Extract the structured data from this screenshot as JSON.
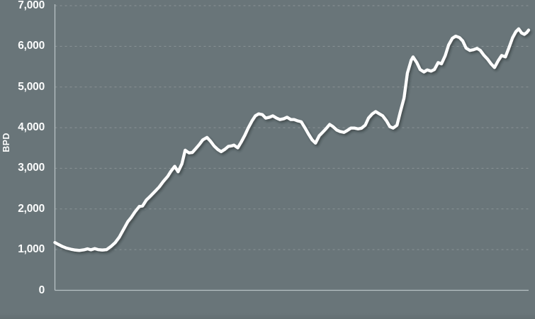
{
  "chart_data": {
    "type": "line",
    "title": "",
    "ylabel": "BPD",
    "xlabel": "",
    "ylim": [
      0,
      7000
    ],
    "x_axis_labels": "none",
    "legend": "none",
    "grid": "horizontal-dashed",
    "background_color": "#697579",
    "line_color": "#ffffff",
    "axis_color": "#b9c3c6",
    "gridline_color": "rgba(255,255,255,0.22)",
    "tick_label_color": "#fbfcfc",
    "y_ticks": [
      {
        "label": "0",
        "value": 0
      },
      {
        "label": "1,000",
        "value": 1000
      },
      {
        "label": "2,000",
        "value": 2000
      },
      {
        "label": "3,000",
        "value": 3000
      },
      {
        "label": "4,000",
        "value": 4000
      },
      {
        "label": "5,000",
        "value": 5000
      },
      {
        "label": "6,000",
        "value": 6000
      },
      {
        "label": "7,000",
        "value": 7000
      }
    ],
    "series": [
      {
        "name": "BPD",
        "x_unit": "percent-of-plot-width",
        "points": [
          [
            0.0,
            1175
          ],
          [
            0.7,
            1130
          ],
          [
            1.6,
            1075
          ],
          [
            2.5,
            1035
          ],
          [
            3.4,
            1010
          ],
          [
            4.3,
            990
          ],
          [
            5.2,
            980
          ],
          [
            6.1,
            995
          ],
          [
            6.9,
            1020
          ],
          [
            7.6,
            995
          ],
          [
            8.4,
            1025
          ],
          [
            9.1,
            1000
          ],
          [
            10.0,
            990
          ],
          [
            10.9,
            1000
          ],
          [
            11.8,
            1075
          ],
          [
            12.7,
            1170
          ],
          [
            13.6,
            1310
          ],
          [
            14.5,
            1500
          ],
          [
            15.4,
            1690
          ],
          [
            16.1,
            1790
          ],
          [
            16.9,
            1930
          ],
          [
            17.8,
            2060
          ],
          [
            18.5,
            2075
          ],
          [
            19.3,
            2220
          ],
          [
            20.2,
            2320
          ],
          [
            21.1,
            2430
          ],
          [
            22.0,
            2540
          ],
          [
            22.9,
            2680
          ],
          [
            23.8,
            2800
          ],
          [
            24.5,
            2930
          ],
          [
            25.3,
            3050
          ],
          [
            26.0,
            2915
          ],
          [
            26.8,
            3110
          ],
          [
            27.5,
            3445
          ],
          [
            28.3,
            3380
          ],
          [
            29.0,
            3390
          ],
          [
            29.7,
            3480
          ],
          [
            30.5,
            3590
          ],
          [
            31.2,
            3700
          ],
          [
            32.1,
            3760
          ],
          [
            32.9,
            3660
          ],
          [
            33.6,
            3550
          ],
          [
            34.4,
            3460
          ],
          [
            35.1,
            3410
          ],
          [
            35.9,
            3470
          ],
          [
            36.6,
            3540
          ],
          [
            37.4,
            3555
          ],
          [
            37.8,
            3570
          ],
          [
            38.6,
            3505
          ],
          [
            39.3,
            3640
          ],
          [
            40.1,
            3815
          ],
          [
            40.8,
            3990
          ],
          [
            41.6,
            4165
          ],
          [
            42.3,
            4290
          ],
          [
            43.0,
            4340
          ],
          [
            43.8,
            4320
          ],
          [
            44.5,
            4235
          ],
          [
            45.3,
            4255
          ],
          [
            46.0,
            4290
          ],
          [
            46.8,
            4235
          ],
          [
            47.5,
            4200
          ],
          [
            48.3,
            4220
          ],
          [
            49.0,
            4255
          ],
          [
            49.8,
            4200
          ],
          [
            50.5,
            4200
          ],
          [
            51.3,
            4165
          ],
          [
            52.0,
            4145
          ],
          [
            52.8,
            3990
          ],
          [
            53.5,
            3850
          ],
          [
            54.3,
            3700
          ],
          [
            55.0,
            3620
          ],
          [
            55.8,
            3800
          ],
          [
            56.5,
            3885
          ],
          [
            57.2,
            3970
          ],
          [
            58.0,
            4080
          ],
          [
            58.7,
            4025
          ],
          [
            59.5,
            3940
          ],
          [
            60.2,
            3905
          ],
          [
            61.0,
            3885
          ],
          [
            61.7,
            3930
          ],
          [
            62.5,
            3990
          ],
          [
            63.2,
            3990
          ],
          [
            64.0,
            3970
          ],
          [
            64.7,
            3985
          ],
          [
            65.5,
            4060
          ],
          [
            66.2,
            4235
          ],
          [
            67.0,
            4340
          ],
          [
            67.7,
            4395
          ],
          [
            68.5,
            4340
          ],
          [
            69.2,
            4290
          ],
          [
            70.0,
            4165
          ],
          [
            70.7,
            4025
          ],
          [
            71.4,
            3990
          ],
          [
            72.2,
            4060
          ],
          [
            72.9,
            4380
          ],
          [
            73.7,
            4730
          ],
          [
            74.4,
            5340
          ],
          [
            75.2,
            5655
          ],
          [
            75.6,
            5740
          ],
          [
            76.4,
            5600
          ],
          [
            77.1,
            5430
          ],
          [
            77.9,
            5370
          ],
          [
            78.6,
            5420
          ],
          [
            79.4,
            5390
          ],
          [
            80.1,
            5430
          ],
          [
            80.9,
            5600
          ],
          [
            81.6,
            5570
          ],
          [
            82.4,
            5770
          ],
          [
            83.1,
            6030
          ],
          [
            83.9,
            6200
          ],
          [
            84.6,
            6250
          ],
          [
            85.4,
            6215
          ],
          [
            86.1,
            6130
          ],
          [
            86.8,
            5955
          ],
          [
            87.6,
            5900
          ],
          [
            88.3,
            5915
          ],
          [
            89.1,
            5950
          ],
          [
            89.8,
            5900
          ],
          [
            90.6,
            5775
          ],
          [
            91.3,
            5690
          ],
          [
            92.1,
            5565
          ],
          [
            92.8,
            5480
          ],
          [
            93.6,
            5650
          ],
          [
            94.3,
            5775
          ],
          [
            95.1,
            5740
          ],
          [
            95.8,
            5950
          ],
          [
            96.6,
            6210
          ],
          [
            97.3,
            6360
          ],
          [
            97.9,
            6430
          ],
          [
            98.5,
            6330
          ],
          [
            99.1,
            6295
          ],
          [
            99.6,
            6340
          ],
          [
            100.0,
            6400
          ]
        ]
      }
    ]
  }
}
